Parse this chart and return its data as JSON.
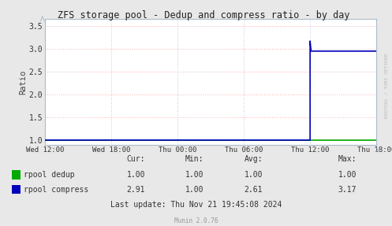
{
  "title": "ZFS storage pool - Dedup and compress ratio - by day",
  "ylabel": "Ratio",
  "bg_color": "#e8e8e8",
  "plot_bg_color": "#ffffff",
  "grid_color_major": "#ff9999",
  "grid_color_minor": "#aabbdd",
  "dedup_color": "#00aa00",
  "compress_color": "#0000bb",
  "x_ticks_labels": [
    "Wed 12:00",
    "Wed 18:00",
    "Thu 00:00",
    "Thu 06:00",
    "Thu 12:00",
    "Thu 18:00"
  ],
  "ylim": [
    0.9,
    3.65
  ],
  "yticks": [
    1.0,
    1.5,
    2.0,
    2.5,
    3.0,
    3.5
  ],
  "cur_dedup": "1.00",
  "min_dedup": "1.00",
  "avg_dedup": "1.00",
  "max_dedup": "1.00",
  "cur_compress": "2.91",
  "min_compress": "1.00",
  "avg_compress": "2.61",
  "max_compress": "3.17",
  "last_update": "Last update: Thu Nov 21 19:45:08 2024",
  "munin_version": "Munin 2.0.76",
  "right_label": "RRDTOOL / TOBI OETIKER",
  "spine_color": "#aabbcc"
}
